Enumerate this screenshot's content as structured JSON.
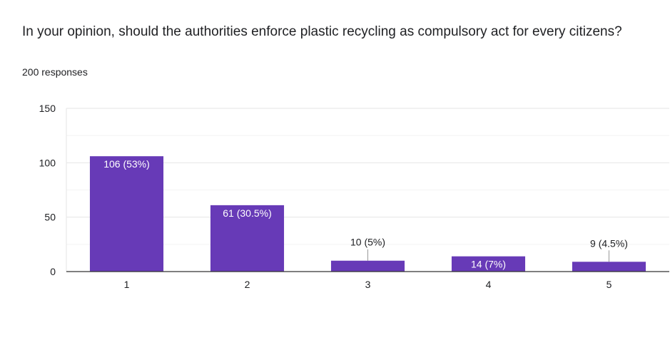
{
  "question": "In your opinion, should the authorities enforce plastic recycling as compulsory act for every citizens?",
  "responses_text": "200 responses",
  "colors": {
    "bar": "#673ab7",
    "text": "#202124",
    "axis": "#333333",
    "grid": "#e6e6e6",
    "label_inside": "#ffffff",
    "label_outside": "#202124"
  },
  "chart_data": {
    "type": "bar",
    "categories": [
      "1",
      "2",
      "3",
      "4",
      "5"
    ],
    "values": [
      106,
      61,
      10,
      14,
      9
    ],
    "data_labels": [
      "106 (53%)",
      "61 (30.5%)",
      "10 (5%)",
      "14 (7%)",
      "9 (4.5%)"
    ],
    "label_placement": [
      "inside",
      "inside",
      "above",
      "inside",
      "above"
    ],
    "title": "In your opinion, should the authorities enforce plastic recycling as compulsory act for every citizens?",
    "xlabel": "",
    "ylabel": "",
    "ylim": [
      0,
      150
    ],
    "yticks": [
      0,
      50,
      100,
      150
    ],
    "grid": true
  }
}
